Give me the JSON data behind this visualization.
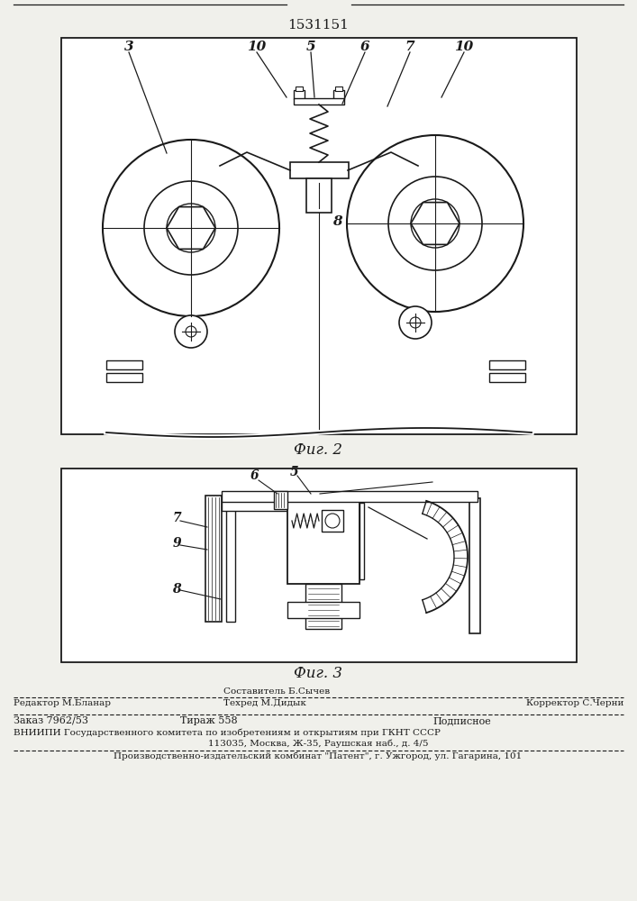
{
  "patent_number": "1531151",
  "fig2_label": "Фиг. 2",
  "fig3_label": "Фиг. 3",
  "footer_line1_left": "Редактор М.Бланар",
  "footer_line1_center1": "Составитель Б.Сычев",
  "footer_line1_center2": "Техред М.Дидык",
  "footer_line1_right": "Корректор С.Черни",
  "footer_line2_left": "Заказ 7962/53",
  "footer_line2_center": "Тираж 558",
  "footer_line2_right": "Подписное",
  "footer_line3": "ВНИИПИ Государственного комитета по изобретениям и открытиям при ГКНТ СССР",
  "footer_line4": "113035, Москва, Ж-35, Раушская наб., д. 4/5",
  "footer_line5": "Производственно-издательский комбинат \"Патент\", г. Ужгород, ул. Гагарина, 101",
  "bg_color": "#f0f0eb",
  "line_color": "#1a1a1a"
}
